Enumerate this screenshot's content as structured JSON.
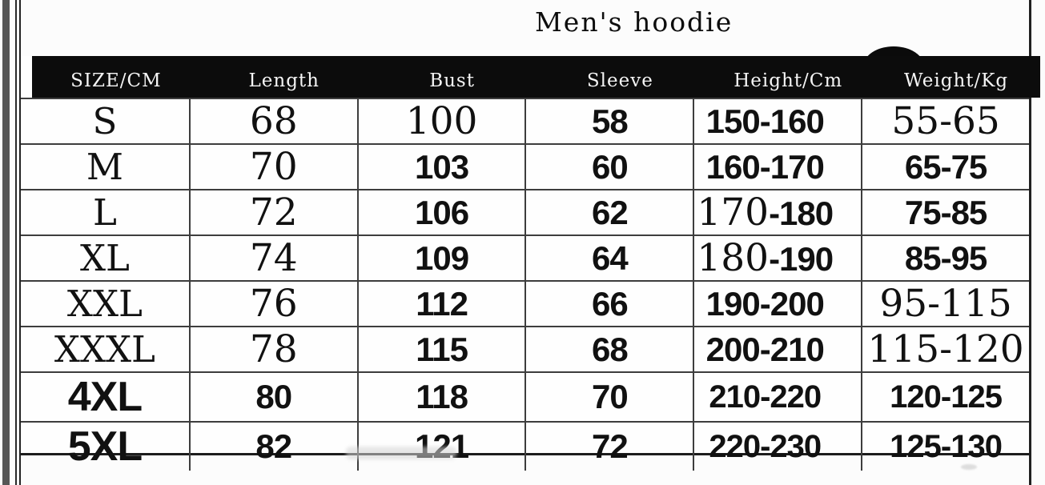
{
  "title": "Men's hoodie",
  "colors": {
    "header_bar": "#0c0c0c",
    "header_text": "#f5f5f5",
    "grid_line": "#3d3d3d",
    "page_edge_bar": "#565656",
    "background": "#fcfcfc",
    "cell_text": "#111111"
  },
  "table": {
    "headers": [
      "SIZE/CM",
      "Length",
      "Bust",
      "Sleeve",
      "Height/Cm",
      "Weight/Kg"
    ],
    "rows": [
      {
        "cells": [
          [
            [
              "S",
              "serif-lg"
            ]
          ],
          [
            [
              "68",
              "serif"
            ]
          ],
          [
            [
              "100",
              "serif"
            ]
          ],
          [
            [
              "58",
              "bold"
            ]
          ],
          [
            [
              "150-160",
              "bold"
            ]
          ],
          [
            [
              "55-65",
              "serif"
            ]
          ]
        ]
      },
      {
        "cells": [
          [
            [
              "M",
              "serif-lg"
            ]
          ],
          [
            [
              "70",
              "serif"
            ]
          ],
          [
            [
              "103",
              "bold"
            ]
          ],
          [
            [
              "60",
              "bold"
            ]
          ],
          [
            [
              "160-170",
              "bold"
            ]
          ],
          [
            [
              "65-75",
              "bold"
            ]
          ]
        ]
      },
      {
        "cells": [
          [
            [
              "L",
              "serif-lg"
            ]
          ],
          [
            [
              "72",
              "serif"
            ]
          ],
          [
            [
              "106",
              "bold"
            ]
          ],
          [
            [
              "62",
              "bold"
            ]
          ],
          [
            [
              "170",
              "serif"
            ],
            [
              "-180",
              "bold"
            ]
          ],
          [
            [
              "75-85",
              "bold"
            ]
          ]
        ]
      },
      {
        "cells": [
          [
            [
              "XL",
              "serif-lg"
            ]
          ],
          [
            [
              "74",
              "serif"
            ]
          ],
          [
            [
              "109",
              "bold"
            ]
          ],
          [
            [
              "64",
              "bold"
            ]
          ],
          [
            [
              "180",
              "serif"
            ],
            [
              "-190",
              "bold"
            ]
          ],
          [
            [
              "85-95",
              "bold"
            ]
          ]
        ]
      },
      {
        "cells": [
          [
            [
              "XXL",
              "serif-lg"
            ]
          ],
          [
            [
              "76",
              "serif"
            ]
          ],
          [
            [
              "112",
              "bold"
            ]
          ],
          [
            [
              "66",
              "bold"
            ]
          ],
          [
            [
              "190-200",
              "bold"
            ]
          ],
          [
            [
              "95-115",
              "serif"
            ]
          ]
        ]
      },
      {
        "cells": [
          [
            [
              "XXXL",
              "serif-lg"
            ]
          ],
          [
            [
              "78",
              "serif"
            ]
          ],
          [
            [
              "115",
              "bold"
            ]
          ],
          [
            [
              "68",
              "bold"
            ]
          ],
          [
            [
              "200-210",
              "bold"
            ]
          ],
          [
            [
              "115-120",
              "serif"
            ]
          ]
        ]
      },
      {
        "cells": [
          [
            [
              "4XL",
              "heavy"
            ]
          ],
          [
            [
              "80",
              "bold"
            ]
          ],
          [
            [
              "118",
              "bold"
            ]
          ],
          [
            [
              "70",
              "bold"
            ]
          ],
          [
            [
              "210-220",
              "sans"
            ]
          ],
          [
            [
              "120-125",
              "sans"
            ]
          ]
        ]
      },
      {
        "cells": [
          [
            [
              "5XL",
              "heavy"
            ]
          ],
          [
            [
              "82",
              "bold"
            ]
          ],
          [
            [
              "121",
              "bold"
            ]
          ],
          [
            [
              "72",
              "bold"
            ]
          ],
          [
            [
              "220-230",
              "sans"
            ]
          ],
          [
            [
              "125-130",
              "sans"
            ]
          ]
        ]
      }
    ]
  }
}
